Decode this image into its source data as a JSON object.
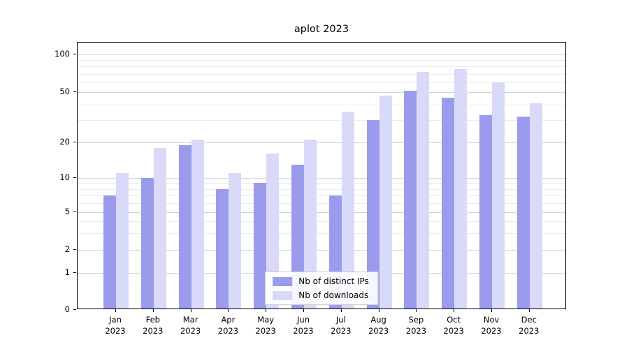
{
  "page": {
    "background": "#ffffff"
  },
  "chart_data": {
    "type": "bar",
    "title": "aplot 2023",
    "categories": [
      "Jan\n2023",
      "Feb\n2023",
      "Mar\n2023",
      "Apr\n2023",
      "May\n2023",
      "Jun\n2023",
      "Jul\n2023",
      "Aug\n2023",
      "Sep\n2023",
      "Oct\n2023",
      "Nov\n2023",
      "Dec\n2023"
    ],
    "series": [
      {
        "name": "Nb of distinct IPs",
        "color": "#9b9bee",
        "values": [
          7,
          10,
          19,
          8,
          9,
          13,
          7,
          30,
          51,
          45,
          33,
          32
        ]
      },
      {
        "name": "Nb of downloads",
        "color": "#d9d9f8",
        "values": [
          11,
          18,
          21,
          11,
          16,
          21,
          35,
          47,
          73,
          76,
          60,
          41
        ]
      }
    ],
    "xlabel": "",
    "ylabel": "",
    "yscale": {
      "type": "symlog",
      "tick_labels": [
        "0",
        "1",
        "2",
        "5",
        "10",
        "20",
        "50",
        "100"
      ],
      "tick_values": [
        0,
        1,
        2,
        5,
        10,
        20,
        50,
        100
      ],
      "minor_tick_values": [
        3,
        4,
        6,
        7,
        8,
        9,
        30,
        40,
        60,
        70,
        80,
        90
      ],
      "ylim": [
        0,
        128
      ]
    },
    "grid": true,
    "legend": {
      "position": "lower center"
    }
  }
}
